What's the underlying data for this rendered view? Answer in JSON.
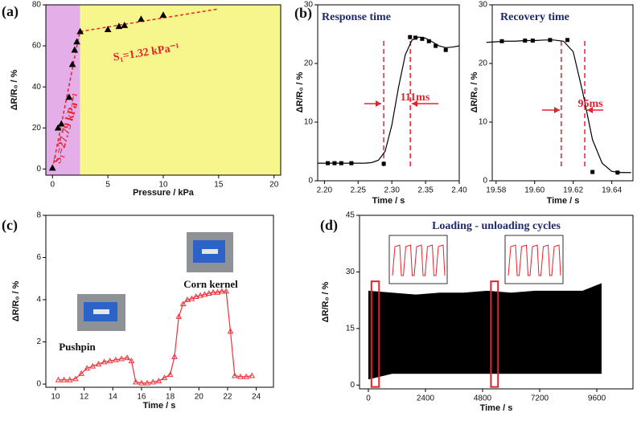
{
  "chart_data": [
    {
      "type": "scatter",
      "panel_label": "(a)",
      "xlabel": "Pressure / kPa",
      "ylabel": "ΔR/R₀ / %",
      "xlim": [
        -0.6,
        20.6
      ],
      "ylim": [
        -3,
        80
      ],
      "xticks": [
        0,
        5,
        10,
        15,
        20
      ],
      "yticks": [
        0,
        20,
        40,
        60,
        80
      ],
      "region_split": 2.5,
      "region_colors": [
        "#e4aee8",
        "#f7f68c"
      ],
      "x": [
        0,
        0.5,
        0.8,
        1.5,
        1.8,
        2.0,
        2.2,
        2.5,
        5,
        6,
        6.5,
        8,
        10
      ],
      "values": [
        0.5,
        20,
        22,
        35,
        51,
        58,
        62,
        67,
        68,
        69.5,
        70,
        73,
        75
      ],
      "color": "#000000",
      "marker": "triangle",
      "fits": [
        {
          "x": [
            0,
            2.5
          ],
          "values": [
            0,
            68
          ]
        },
        {
          "x": [
            2.5,
            15
          ],
          "values": [
            67,
            78
          ]
        }
      ],
      "fit_color": "#e8202a",
      "annotations": [
        "S₁=27.79 kPa⁻¹",
        "S₁=1.32 kPa⁻¹"
      ]
    },
    {
      "type": "line",
      "panel_label": "(b)",
      "title": "Response time",
      "xlabel": "Time / s",
      "ylabel": "ΔR/R₀ / %",
      "xlim": [
        2.19,
        2.4
      ],
      "ylim": [
        0,
        30
      ],
      "xticks": [
        {
          "value": 2.2,
          "label": "2.20"
        },
        2.25,
        {
          "value": 2.3,
          "label": "2.30"
        },
        2.35,
        {
          "value": 2.4,
          "label": "2.40"
        }
      ],
      "yticks": [
        0,
        10,
        20,
        30
      ],
      "x": [
        2.205,
        2.215,
        2.225,
        2.24,
        2.288,
        2.327,
        2.335,
        2.345,
        2.355,
        2.365,
        2.38
      ],
      "values": [
        3,
        3,
        3,
        3,
        2.9,
        24.5,
        24.4,
        24.2,
        23.8,
        23,
        22.3
      ],
      "color": "#000000",
      "marker": "square",
      "curve": {
        "x": [
          2.19,
          2.2,
          2.21,
          2.22,
          2.23,
          2.24,
          2.25,
          2.26,
          2.27,
          2.28,
          2.29,
          2.3,
          2.31,
          2.32,
          2.33,
          2.34,
          2.35,
          2.36,
          2.37,
          2.38,
          2.39,
          2.4
        ],
        "values": [
          3,
          3,
          3,
          3,
          3,
          3,
          3,
          3,
          3.1,
          3.5,
          5,
          9.5,
          16,
          21.5,
          24,
          24.5,
          24.3,
          23.7,
          23,
          22.7,
          22.8,
          23
        ]
      },
      "dashed_x": [
        2.288,
        2.3274
      ],
      "dashed_color": "#e8202a",
      "annotations": [
        "111ms"
      ]
    },
    {
      "type": "line",
      "title": "Recovery time",
      "xlabel": "Time / s",
      "ylabel": "ΔR/R₀ / %",
      "xlim": [
        19.578,
        19.651
      ],
      "ylim": [
        0,
        30
      ],
      "xticks": [
        19.58,
        {
          "value": 19.6,
          "label": "19.60"
        },
        19.62,
        19.64
      ],
      "yticks": [
        0,
        10,
        20,
        30
      ],
      "x": [
        19.583,
        19.595,
        19.599,
        19.608,
        19.617,
        19.63,
        19.643
      ],
      "values": [
        23.8,
        23.9,
        23.9,
        24,
        24,
        1.5,
        1.4
      ],
      "color": "#000000",
      "marker": "square",
      "curve": {
        "x": [
          19.575,
          19.58,
          19.585,
          19.59,
          19.595,
          19.6,
          19.605,
          19.61,
          19.615,
          19.62,
          19.625,
          19.63,
          19.635,
          19.64,
          19.645,
          19.65
        ],
        "values": [
          23.6,
          23.7,
          23.8,
          23.8,
          23.9,
          23.9,
          24,
          24,
          23.8,
          22,
          15,
          7,
          3,
          1.6,
          1.4,
          1.4
        ]
      },
      "dashed_x": [
        19.6138,
        19.626
      ],
      "dashed_color": "#e8202a",
      "annotations": [
        "95ms"
      ]
    },
    {
      "type": "line",
      "panel_label": "(c)",
      "xlabel": "Time / s",
      "ylabel": "ΔR/R₀ / %",
      "xlim": [
        9.33,
        25.2
      ],
      "ylim": [
        -0.15,
        8
      ],
      "xticks": [
        10,
        12,
        14,
        16,
        18,
        20,
        22,
        24
      ],
      "yticks": [
        0,
        2,
        4,
        6,
        8
      ],
      "x": [
        10.2,
        10.6,
        11,
        11.4,
        11.8,
        12.2,
        12.6,
        13,
        13.4,
        13.8,
        14.2,
        14.6,
        15,
        15.3,
        15.6,
        16,
        16.4,
        16.8,
        17.2,
        17.6,
        18,
        18.3,
        18.6,
        18.9,
        19.2,
        19.5,
        19.8,
        20.1,
        20.4,
        20.7,
        21,
        21.3,
        21.6,
        21.9,
        22.2,
        22.5,
        22.9,
        23.3,
        23.7
      ],
      "values": [
        0.2,
        0.2,
        0.2,
        0.25,
        0.5,
        0.75,
        0.85,
        0.95,
        1.05,
        1.1,
        1.15,
        1.2,
        1.25,
        1.1,
        0.1,
        0.05,
        0.05,
        0.1,
        0.15,
        0.3,
        0.45,
        1.3,
        3.2,
        3.8,
        4.0,
        4.05,
        4.15,
        4.2,
        4.25,
        4.3,
        4.35,
        4.35,
        4.4,
        4.4,
        2.5,
        0.4,
        0.35,
        0.35,
        0.4
      ],
      "color": "#f0303a",
      "marker": "triangle-open",
      "labels": [
        "Pushpin",
        "Corn kernel"
      ]
    },
    {
      "type": "band",
      "panel_label": "(d)",
      "title": "Loading - unloading cycles",
      "xlabel": "Time / s",
      "ylabel": "ΔR/R₀ / %",
      "xlim": [
        -371,
        11120
      ],
      "ylim": [
        -1,
        45
      ],
      "xticks": [
        0,
        2400,
        4800,
        7200,
        9600
      ],
      "yticks": [
        0,
        15,
        30,
        45
      ],
      "x": [
        0,
        1000,
        2000,
        3000,
        4000,
        5000,
        6000,
        7000,
        8000,
        9000,
        9800
      ],
      "upper": [
        25,
        24.5,
        24,
        24.5,
        24.5,
        25,
        24.5,
        25,
        25,
        25,
        27
      ],
      "lower": [
        1.5,
        3,
        3,
        3,
        3,
        3,
        3,
        3,
        3,
        3,
        3
      ],
      "color": "#000000",
      "highlights": [
        [
          130,
          450
        ],
        [
          5150,
          5450
        ]
      ],
      "highlight_color": "#e8202a"
    }
  ]
}
